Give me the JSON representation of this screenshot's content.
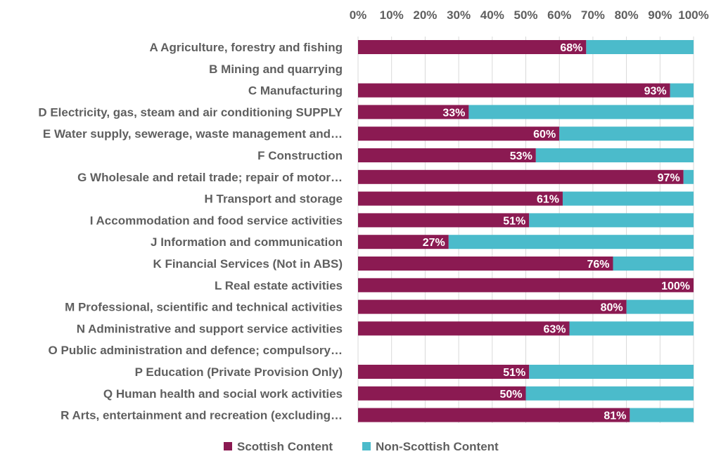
{
  "chart_data": {
    "type": "bar",
    "orientation": "horizontal",
    "stacked": true,
    "percent_stacked": true,
    "categories": [
      "A Agriculture, forestry and fishing",
      "B Mining and quarrying",
      "C Manufacturing",
      "D Electricity, gas, steam and air conditioning  SUPPLY",
      "E Water supply, sewerage, waste management and…",
      "F Construction",
      "G Wholesale and retail trade; repair of motor…",
      "H Transport and storage",
      "I Accommodation and food service activities",
      "J Information and communication",
      "K Financial Services (Not in ABS)",
      "L Real estate activities",
      "M Professional, scientific and technical activities",
      "N Administrative and support service activities",
      "O Public administration and defence; compulsory…",
      "P Education (Private Provision Only)",
      "Q Human health and social work activities",
      "R Arts, entertainment and recreation (excluding…"
    ],
    "series": [
      {
        "name": "Scottish Content",
        "color": "#8b1a52",
        "values": [
          68,
          null,
          93,
          33,
          60,
          53,
          97,
          61,
          51,
          27,
          76,
          100,
          80,
          63,
          null,
          51,
          50,
          81
        ],
        "data_labels": [
          "68%",
          "",
          "93%",
          "33%",
          "60%",
          "53%",
          "97%",
          "61%",
          "51%",
          "27%",
          "76%",
          "100%",
          "80%",
          "63%",
          "",
          "51%",
          "50%",
          "81%"
        ]
      },
      {
        "name": "Non-Scottish Content",
        "color": "#4bbbcb",
        "values": [
          32,
          null,
          7,
          67,
          40,
          47,
          3,
          39,
          49,
          73,
          24,
          0,
          20,
          37,
          null,
          49,
          50,
          19
        ]
      }
    ],
    "x_ticks": [
      "0%",
      "10%",
      "20%",
      "30%",
      "40%",
      "50%",
      "60%",
      "70%",
      "80%",
      "90%",
      "100%"
    ],
    "xlim": [
      0,
      100
    ],
    "x_axis_position": "top",
    "grid": true,
    "legend": {
      "position": "bottom",
      "entries": [
        "Scottish Content",
        "Non-Scottish Content"
      ]
    }
  }
}
